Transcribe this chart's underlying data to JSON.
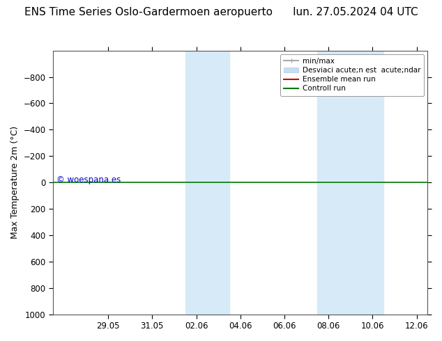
{
  "title_left": "ENS Time Series Oslo-Gardermoen aeropuerto",
  "title_right": "lun. 27.05.2024 04 UTC",
  "ylabel": "Max Temperature 2m (°C)",
  "ylim_bottom": 1000,
  "ylim_top": -1000,
  "yticks": [
    -800,
    -600,
    -400,
    -200,
    0,
    200,
    400,
    600,
    800,
    1000
  ],
  "xtick_labels": [
    "29.05",
    "31.05",
    "02.06",
    "04.06",
    "06.06",
    "08.06",
    "10.06",
    "12.06"
  ],
  "xtick_positions": [
    2,
    4,
    6,
    8,
    10,
    12,
    14,
    16
  ],
  "xlim_left": -0.5,
  "xlim_right": 16.5,
  "shaded_region1_xmin": 5.5,
  "shaded_region1_xmax": 7.5,
  "shaded_region2_xmin": 11.5,
  "shaded_region2_xmax": 14.5,
  "shaded_color": "#d6eaf8",
  "horizontal_line_y": 0,
  "ensemble_mean_color": "#cc0000",
  "control_run_color": "#007700",
  "minmax_color": "#aaaaaa",
  "std_color": "#c8ddf0",
  "background_color": "#ffffff",
  "watermark": "© woespana.es",
  "watermark_color": "#0000cc",
  "legend_label_minmax": "min/max",
  "legend_label_std": "Desviaci acute;n est  acute;ndar",
  "legend_label_ensemble": "Ensemble mean run",
  "legend_label_control": "Controll run",
  "title_fontsize": 11,
  "axis_fontsize": 9,
  "tick_fontsize": 8.5,
  "legend_fontsize": 7.5
}
